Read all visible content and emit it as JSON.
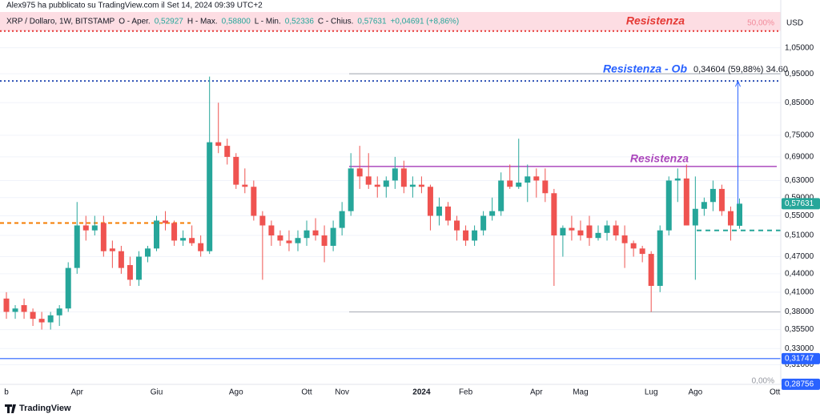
{
  "header": {
    "author_line": "Alex975 ha pubblicato su TradingView.com il Set 14, 2024 09:39 UTC+2",
    "symbol": "XRP / Dollaro, 1W, BITSTAMP",
    "legend": [
      {
        "label": "O - Aper.",
        "value": "0,52927"
      },
      {
        "label": "H - Max.",
        "value": "0,58800"
      },
      {
        "label": "L - Min.",
        "value": "0,52336"
      },
      {
        "label": "C - Chius.",
        "value": "0,57631"
      }
    ],
    "change": "+0,04691 (+8,86%)",
    "currency": "USD",
    "brand": "TradingView"
  },
  "chart_data": {
    "type": "candlestick",
    "log": true,
    "grid": true,
    "up_color": "#26a69a",
    "down_color": "#ef5350",
    "categories": [
      "b",
      null,
      null,
      null,
      null,
      null,
      null,
      null,
      "Apr",
      null,
      null,
      null,
      null,
      null,
      null,
      null,
      null,
      "Giu",
      null,
      null,
      null,
      null,
      null,
      null,
      null,
      null,
      "Ago",
      null,
      null,
      null,
      null,
      null,
      null,
      null,
      "Ott",
      null,
      null,
      null,
      "Nov",
      null,
      null,
      null,
      null,
      null,
      null,
      null,
      null,
      "2024",
      null,
      null,
      null,
      null,
      "Feb",
      null,
      null,
      null,
      null,
      null,
      null,
      null,
      "Apr",
      null,
      null,
      null,
      null,
      "Mag",
      null,
      null,
      null,
      null,
      null,
      null,
      null,
      "Lug",
      null,
      null,
      null,
      null,
      "Ago",
      null,
      null,
      null,
      null,
      null,
      null,
      null,
      null,
      "Ott"
    ],
    "open": [
      0.4,
      0.38,
      0.39,
      0.38,
      0.37,
      0.365,
      0.375,
      0.385,
      0.45,
      0.53,
      0.52,
      0.535,
      0.485,
      0.48,
      0.455,
      0.43,
      0.47,
      0.485,
      0.54,
      0.535,
      0.5,
      0.505,
      0.495,
      0.48,
      0.73,
      0.72,
      0.69,
      0.62,
      0.615,
      0.55,
      0.53,
      0.51,
      0.5,
      0.495,
      0.505,
      0.52,
      0.51,
      0.49,
      0.525,
      0.56,
      0.66,
      0.64,
      0.62,
      0.615,
      0.63,
      0.66,
      0.615,
      0.62,
      0.615,
      0.55,
      0.57,
      0.54,
      0.52,
      0.5,
      0.52,
      0.55,
      0.56,
      0.63,
      0.615,
      0.625,
      0.64,
      0.63,
      0.6,
      0.51,
      0.525,
      0.52,
      0.53,
      0.505,
      0.515,
      0.53,
      0.51,
      0.495,
      0.485,
      0.475,
      0.42,
      0.52,
      0.63,
      0.635,
      0.53,
      0.565,
      0.58,
      0.61,
      0.56,
      0.52927,
      null,
      null,
      null,
      null
    ],
    "high": [
      0.41,
      0.39,
      0.4,
      0.385,
      0.38,
      0.38,
      0.39,
      0.46,
      0.58,
      0.55,
      0.55,
      0.55,
      0.5,
      0.49,
      0.47,
      0.48,
      0.49,
      0.55,
      0.56,
      0.54,
      0.52,
      0.53,
      0.51,
      0.94,
      0.85,
      0.74,
      0.7,
      0.66,
      0.63,
      0.56,
      0.54,
      0.52,
      0.52,
      0.52,
      0.54,
      0.545,
      0.53,
      0.54,
      0.58,
      0.7,
      0.72,
      0.7,
      0.64,
      0.64,
      0.69,
      0.68,
      0.64,
      0.64,
      0.62,
      0.59,
      0.58,
      0.55,
      0.53,
      0.53,
      0.56,
      0.59,
      0.65,
      0.67,
      0.74,
      0.67,
      0.66,
      0.66,
      0.61,
      0.53,
      0.55,
      0.54,
      0.55,
      0.53,
      0.54,
      0.54,
      0.53,
      0.5,
      0.49,
      0.48,
      0.53,
      0.64,
      0.66,
      0.67,
      0.64,
      0.59,
      0.63,
      0.62,
      0.57,
      0.588,
      null,
      null,
      null,
      null
    ],
    "low": [
      0.37,
      0.37,
      0.37,
      0.36,
      0.355,
      0.355,
      0.36,
      0.38,
      0.44,
      0.5,
      0.51,
      0.47,
      0.45,
      0.44,
      0.42,
      0.42,
      0.46,
      0.48,
      0.52,
      0.49,
      0.49,
      0.49,
      0.47,
      0.475,
      0.7,
      0.67,
      0.61,
      0.6,
      0.54,
      0.43,
      0.49,
      0.49,
      0.48,
      0.48,
      0.49,
      0.5,
      0.46,
      0.48,
      0.51,
      0.55,
      0.61,
      0.61,
      0.59,
      0.59,
      0.61,
      0.6,
      0.59,
      0.6,
      0.52,
      0.53,
      0.53,
      0.5,
      0.49,
      0.49,
      0.51,
      0.54,
      0.55,
      0.61,
      0.61,
      0.58,
      0.59,
      0.58,
      0.42,
      0.47,
      0.5,
      0.5,
      0.49,
      0.5,
      0.5,
      0.5,
      0.45,
      0.47,
      0.46,
      0.38,
      0.41,
      0.51,
      0.58,
      0.53,
      0.43,
      0.55,
      0.56,
      0.55,
      0.5,
      0.52336,
      null,
      null,
      null,
      null
    ],
    "close": [
      0.38,
      0.385,
      0.38,
      0.37,
      0.365,
      0.375,
      0.385,
      0.45,
      0.53,
      0.52,
      0.53,
      0.48,
      0.48,
      0.45,
      0.43,
      0.47,
      0.485,
      0.54,
      0.535,
      0.5,
      0.505,
      0.495,
      0.48,
      0.73,
      0.72,
      0.69,
      0.62,
      0.615,
      0.55,
      0.53,
      0.51,
      0.5,
      0.495,
      0.505,
      0.52,
      0.51,
      0.49,
      0.525,
      0.56,
      0.66,
      0.64,
      0.62,
      0.615,
      0.63,
      0.66,
      0.615,
      0.62,
      0.615,
      0.55,
      0.57,
      0.54,
      0.52,
      0.5,
      0.52,
      0.55,
      0.56,
      0.63,
      0.615,
      0.625,
      0.64,
      0.63,
      0.6,
      0.51,
      0.525,
      0.52,
      0.51,
      0.505,
      0.515,
      0.53,
      0.51,
      0.495,
      0.485,
      0.475,
      0.42,
      0.52,
      0.63,
      0.635,
      0.53,
      0.565,
      0.58,
      0.61,
      0.56,
      0.53,
      0.57631,
      null,
      null,
      null,
      null
    ],
    "ylim": [
      0.2875,
      1.205
    ],
    "yticks": [
      {
        "value": 1.05,
        "label": "1,05000"
      },
      {
        "value": 0.95,
        "label": "0,95000"
      },
      {
        "value": 0.85,
        "label": "0,85000"
      },
      {
        "value": 0.75,
        "label": "0,75000"
      },
      {
        "value": 0.69,
        "label": "0,69000"
      },
      {
        "value": 0.63,
        "label": "0,63000"
      },
      {
        "value": 0.59,
        "label": "0,59000"
      },
      {
        "value": 0.55,
        "label": "0,55000"
      },
      {
        "value": 0.51,
        "label": "0,51000"
      },
      {
        "value": 0.47,
        "label": "0,47000"
      },
      {
        "value": 0.44,
        "label": "0,44000"
      },
      {
        "value": 0.41,
        "label": "0,41000"
      },
      {
        "value": 0.38,
        "label": "0,38000"
      },
      {
        "value": 0.355,
        "label": "0,35500"
      },
      {
        "value": 0.33,
        "label": "0,33000"
      },
      {
        "value": 0.31,
        "label": "0,31000"
      }
    ],
    "zone": {
      "low": 1.12,
      "high": 1.205,
      "color": "#fcd4dc"
    },
    "hlines": [
      {
        "value": 1.12,
        "color": "#e53935"
      },
      {
        "value": 0.924,
        "color": "#2a4fb5"
      },
      {
        "value": 0.95,
        "color": "#b2b5be"
      },
      {
        "value": 0.665,
        "color": "#9c27b0"
      },
      {
        "value": 0.535,
        "color": "#f57c00"
      },
      {
        "value": 0.52,
        "color": "#26a69a"
      },
      {
        "value": 0.38,
        "color": "#b2b5be"
      },
      {
        "value": 0.31747,
        "color": "#2962ff"
      }
    ],
    "price_labels": [
      {
        "value": 0.57631,
        "label": "0,57631",
        "color": "#26a69a"
      },
      {
        "value": 0.31747,
        "label": "0,31747",
        "color": "#2962ff"
      },
      {
        "value": 0.28756,
        "label": "0,28756",
        "color": "#2962ff"
      }
    ],
    "annotations": {
      "top_resistance": "Resistenza",
      "fib_top": "50,00%",
      "target": "Resistenza - Ob",
      "measure": "0,34604 (59,88%) 34.60",
      "mid_resistance": "Resistenza",
      "fib_bottom": "0,00%"
    }
  }
}
